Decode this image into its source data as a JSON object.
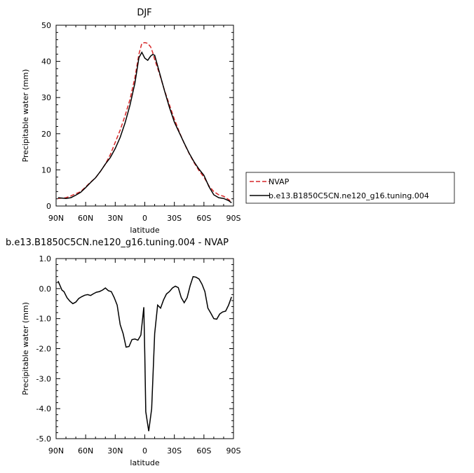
{
  "chart_data": [
    {
      "type": "line",
      "title": "DJF",
      "xlabel": "latitude",
      "ylabel": "Precipitable water (mm)",
      "xlim": [
        90,
        -90
      ],
      "ylim": [
        0,
        50
      ],
      "x_ticks": [
        90,
        60,
        30,
        0,
        -30,
        -60,
        -90
      ],
      "x_tick_labels": [
        "90N",
        "60N",
        "30N",
        "0",
        "30S",
        "60S",
        "90S"
      ],
      "y_ticks": [
        0,
        10,
        20,
        30,
        40,
        50
      ],
      "y_tick_labels": [
        "0",
        "10",
        "20",
        "30",
        "40",
        "50"
      ],
      "legend": {
        "position": "right"
      },
      "series": [
        {
          "name": "NVAP",
          "color": "#d62728",
          "dash": "dashed",
          "x": [
            88,
            80,
            75,
            70,
            65,
            60,
            55,
            50,
            45,
            40,
            35,
            30,
            25,
            20,
            15,
            10,
            6,
            3,
            0,
            -3,
            -6,
            -8,
            -10,
            -15,
            -20,
            -25,
            -30,
            -35,
            -40,
            -45,
            -50,
            -55,
            -60,
            -65,
            -70,
            -75,
            -80,
            -85,
            -88
          ],
          "values": [
            2.1,
            2.3,
            2.8,
            3.4,
            4.0,
            5.3,
            6.6,
            7.8,
            9.6,
            11.6,
            14.2,
            17.6,
            21.0,
            25.0,
            29.5,
            35.5,
            42.0,
            45.0,
            45.2,
            45.0,
            44.0,
            42.5,
            40.5,
            36.5,
            32.0,
            28.0,
            24.0,
            20.5,
            17.3,
            14.5,
            12.0,
            9.8,
            8.0,
            5.6,
            4.0,
            3.1,
            2.7,
            1.8,
            1.2
          ]
        },
        {
          "name": "b.e13.B1850C5CN.ne120_g16.tuning.004",
          "color": "#000000",
          "dash": "solid",
          "x": [
            88,
            80,
            75,
            70,
            65,
            60,
            55,
            50,
            45,
            40,
            35,
            30,
            25,
            20,
            15,
            10,
            6,
            3,
            0,
            -3,
            -6,
            -8,
            -10,
            -15,
            -20,
            -25,
            -30,
            -35,
            -40,
            -45,
            -50,
            -55,
            -60,
            -65,
            -70,
            -75,
            -80,
            -85,
            -88
          ],
          "values": [
            2.3,
            2.1,
            2.3,
            3.0,
            3.8,
            5.1,
            6.5,
            7.8,
            9.6,
            11.6,
            13.4,
            15.9,
            19.0,
            23.0,
            27.9,
            34.0,
            41.0,
            42.5,
            40.9,
            40.3,
            41.5,
            41.9,
            41.7,
            36.8,
            31.9,
            27.3,
            23.2,
            20.3,
            17.4,
            14.6,
            12.2,
            10.2,
            8.5,
            5.4,
            3.1,
            2.3,
            2.1,
            1.5,
            0.9
          ]
        }
      ]
    },
    {
      "type": "line",
      "title": "b.e13.B1850C5CN.ne120_g16.tuning.004 - NVAP",
      "xlabel": "latitude",
      "ylabel": "Precipitable water (mm)",
      "xlim": [
        90,
        -90
      ],
      "ylim": [
        -5,
        1
      ],
      "x_ticks": [
        90,
        60,
        30,
        0,
        -30,
        -60,
        -90
      ],
      "x_tick_labels": [
        "90N",
        "60N",
        "30N",
        "0",
        "30S",
        "60S",
        "90S"
      ],
      "y_ticks": [
        1,
        0,
        -1,
        -2,
        -3,
        -4,
        -5
      ],
      "y_tick_labels": [
        "1.0",
        "0.0",
        "-1.0",
        "-2.0",
        "-3.0",
        "-4.0",
        "-5.0"
      ],
      "series": [
        {
          "color": "#000000",
          "x": [
            88,
            86,
            84,
            82,
            79,
            76,
            73,
            70,
            67,
            64,
            61,
            58,
            55,
            52,
            49,
            46,
            43,
            40,
            37,
            34,
            31,
            28,
            25,
            22,
            19,
            16,
            13,
            10,
            7,
            4,
            1,
            0,
            -1,
            -4,
            -7,
            -10,
            -13,
            -16,
            -19,
            -22,
            -25,
            -28,
            -31,
            -34,
            -37,
            -40,
            -43,
            -46,
            -49,
            -52,
            -55,
            -58,
            -61,
            -64,
            -67,
            -70,
            -73,
            -76,
            -79,
            -82,
            -85,
            -88
          ],
          "values": [
            0.25,
            0.1,
            -0.05,
            -0.1,
            -0.3,
            -0.42,
            -0.5,
            -0.45,
            -0.33,
            -0.27,
            -0.22,
            -0.2,
            -0.23,
            -0.17,
            -0.12,
            -0.1,
            -0.05,
            0.02,
            -0.07,
            -0.1,
            -0.3,
            -0.55,
            -1.2,
            -1.5,
            -1.95,
            -1.93,
            -1.7,
            -1.68,
            -1.72,
            -1.55,
            -0.62,
            -2.2,
            -4.1,
            -4.75,
            -4.0,
            -1.5,
            -0.55,
            -0.65,
            -0.38,
            -0.18,
            -0.1,
            0.02,
            0.08,
            0.03,
            -0.3,
            -0.47,
            -0.3,
            0.1,
            0.4,
            0.38,
            0.32,
            0.15,
            -0.1,
            -0.65,
            -0.82,
            -1.0,
            -1.02,
            -0.85,
            -0.78,
            -0.75,
            -0.55,
            -0.28
          ]
        }
      ]
    }
  ]
}
